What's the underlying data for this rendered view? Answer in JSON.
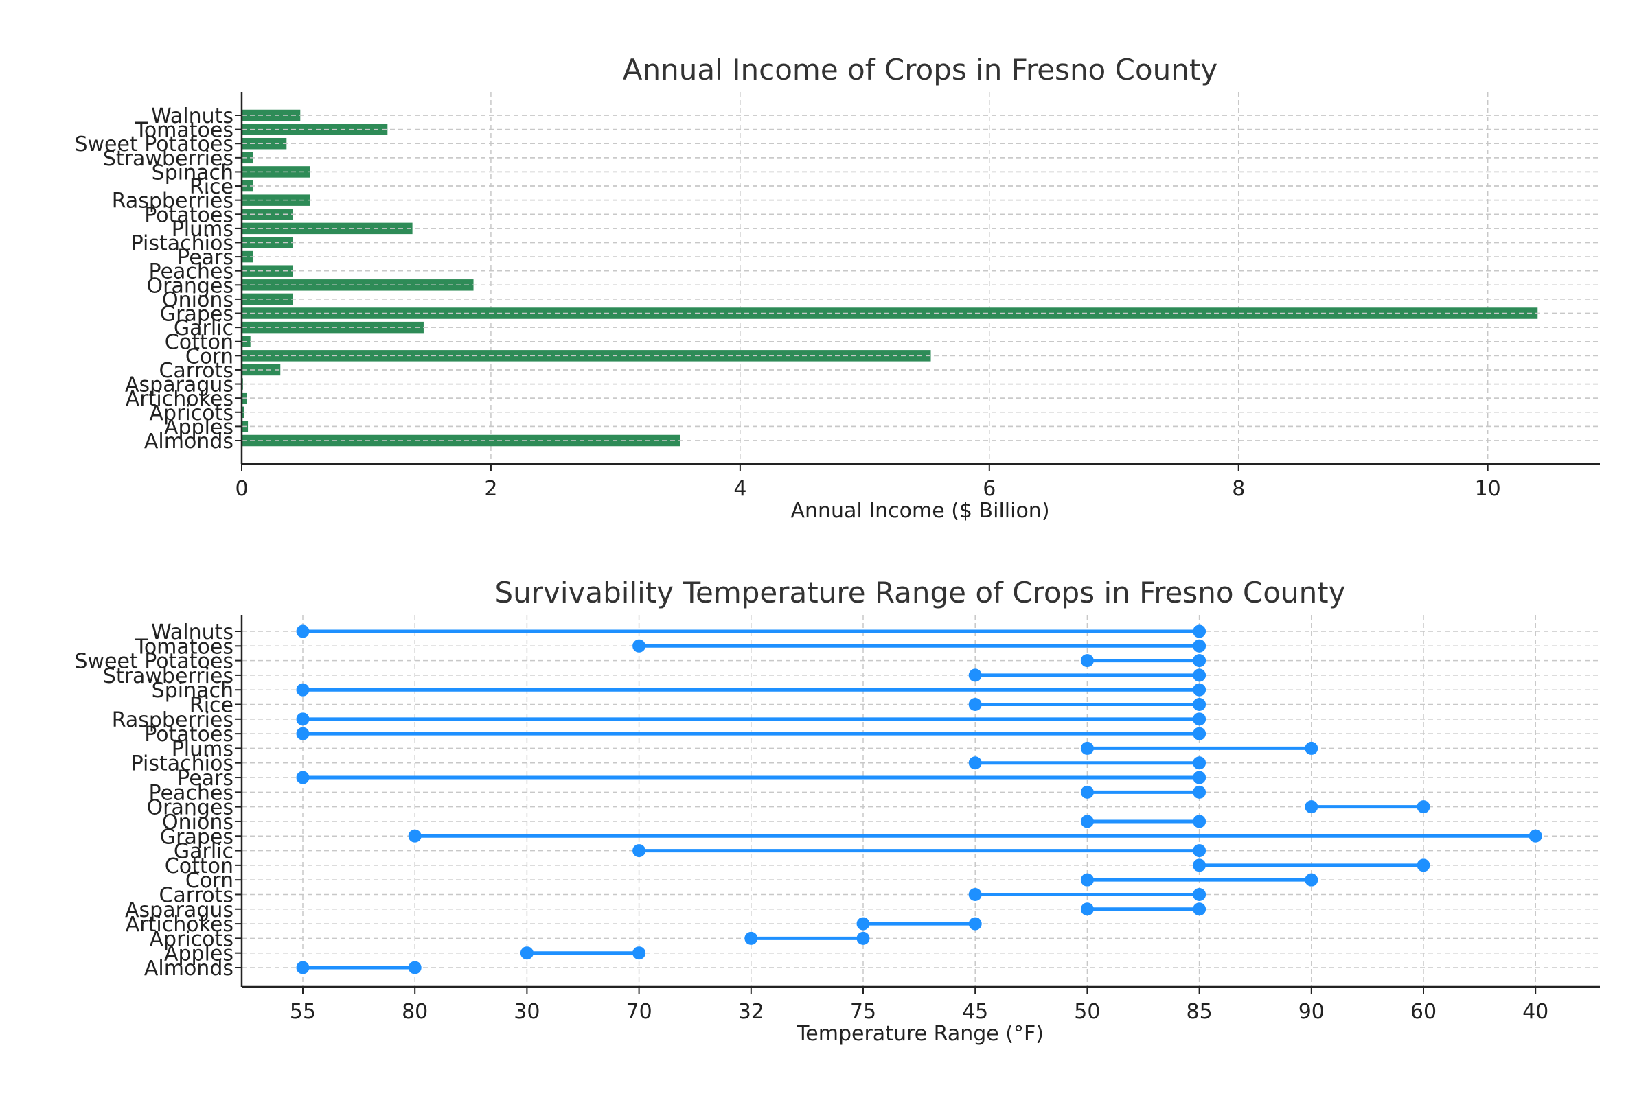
{
  "chart_data": [
    {
      "type": "bar",
      "orientation": "horizontal",
      "title": "Annual Income of Crops in Fresno County",
      "xlabel": "Annual Income ($ Billion)",
      "ylabel": "",
      "xlim": [
        0,
        10.9
      ],
      "xticks": [
        "0",
        "2",
        "4",
        "6",
        "8",
        "10"
      ],
      "grid": true,
      "bar_color": "#2e8b57",
      "categories": [
        "Almonds",
        "Apples",
        "Apricots",
        "Artichokes",
        "Asparagus",
        "Carrots",
        "Corn",
        "Cotton",
        "Garlic",
        "Grapes",
        "Onions",
        "Oranges",
        "Peaches",
        "Pears",
        "Pistachios",
        "Plums",
        "Potatoes",
        "Raspberries",
        "Rice",
        "Spinach",
        "Strawberries",
        "Sweet Potatoes",
        "Tomatoes",
        "Walnuts"
      ],
      "values": [
        3.52,
        0.05,
        0.02,
        0.04,
        0.01,
        0.31,
        5.53,
        0.07,
        1.46,
        10.4,
        0.41,
        1.86,
        0.41,
        0.09,
        0.41,
        1.37,
        0.41,
        0.55,
        0.09,
        0.55,
        0.09,
        0.36,
        1.17,
        0.47
      ]
    },
    {
      "type": "range",
      "title": "Survivability Temperature Range of Crops in Fresno County",
      "xlabel": "Temperature Range (°F)",
      "ylabel": "",
      "xticks": [
        "55",
        "80",
        "30",
        "70",
        "32",
        "75",
        "45",
        "50",
        "85",
        "90",
        "60",
        "40"
      ],
      "grid": true,
      "color": "#1e90ff",
      "categories": [
        "Almonds",
        "Apples",
        "Apricots",
        "Artichokes",
        "Asparagus",
        "Carrots",
        "Corn",
        "Cotton",
        "Garlic",
        "Grapes",
        "Onions",
        "Oranges",
        "Peaches",
        "Pears",
        "Pistachios",
        "Plums",
        "Potatoes",
        "Raspberries",
        "Rice",
        "Spinach",
        "Strawberries",
        "Sweet Potatoes",
        "Tomatoes",
        "Walnuts"
      ],
      "ranges": [
        [
          "55",
          "80"
        ],
        [
          "30",
          "70"
        ],
        [
          "32",
          "75"
        ],
        [
          "75",
          "45"
        ],
        [
          "50",
          "85"
        ],
        [
          "45",
          "85"
        ],
        [
          "50",
          "90"
        ],
        [
          "85",
          "60"
        ],
        [
          "70",
          "85"
        ],
        [
          "80",
          "40"
        ],
        [
          "50",
          "85"
        ],
        [
          "90",
          "60"
        ],
        [
          "50",
          "85"
        ],
        [
          "55",
          "85"
        ],
        [
          "45",
          "85"
        ],
        [
          "50",
          "90"
        ],
        [
          "55",
          "85"
        ],
        [
          "55",
          "85"
        ],
        [
          "45",
          "85"
        ],
        [
          "55",
          "85"
        ],
        [
          "45",
          "85"
        ],
        [
          "50",
          "85"
        ],
        [
          "70",
          "85"
        ],
        [
          "55",
          "85"
        ]
      ]
    }
  ]
}
